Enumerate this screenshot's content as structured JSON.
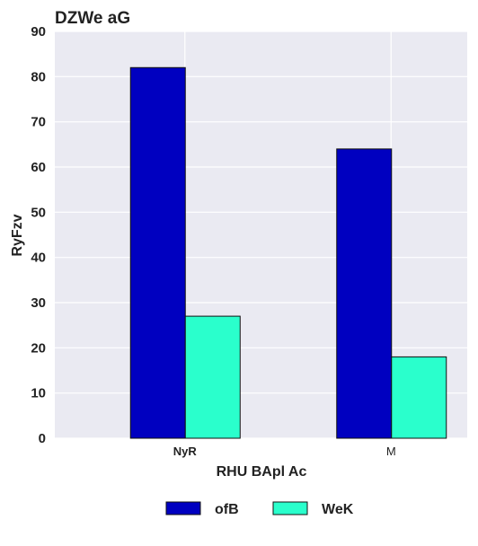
{
  "chart_data": {
    "type": "bar",
    "title": "DZWe aG",
    "xlabel": "RHU BApl  Ac",
    "ylabel": "RyFzv",
    "categories": [
      "NyR",
      "M"
    ],
    "category_label_bold": [
      true,
      false
    ],
    "series": [
      {
        "name": "ofB",
        "color": "#0000c0",
        "values": [
          82,
          64
        ]
      },
      {
        "name": "WeK",
        "color": "#2affcc",
        "values": [
          27,
          18
        ]
      }
    ],
    "ylim": [
      0,
      90
    ],
    "yticks": [
      0,
      10,
      20,
      30,
      40,
      50,
      60,
      70,
      80,
      90
    ],
    "grid": true,
    "plot_background": "#eaeaf2",
    "legend_position": "bottom-center"
  }
}
